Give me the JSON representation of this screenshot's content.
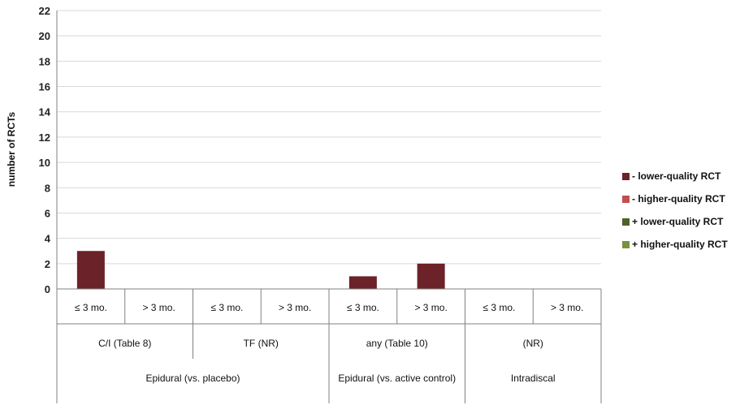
{
  "chart_data": {
    "type": "bar",
    "ylabel": "number of RCTs",
    "ylim": [
      0,
      22
    ],
    "yticks": [
      "0",
      "2",
      "4",
      "6",
      "8",
      "10",
      "12",
      "14",
      "16",
      "18",
      "20",
      "22"
    ],
    "categories": [
      "≤ 3 mo.",
      "> 3 mo.",
      "≤ 3 mo.",
      "> 3 mo.",
      "≤ 3 mo.",
      "> 3 mo.",
      "≤ 3 mo.",
      "> 3 mo."
    ],
    "level2": [
      {
        "label": "C/I (Table 8)",
        "span": 2
      },
      {
        "label": "TF (NR)",
        "span": 2
      },
      {
        "label": "any (Table 10)",
        "span": 2
      },
      {
        "label": "(NR)",
        "span": 2
      }
    ],
    "level3": [
      {
        "label": "Epidural (vs. placebo)",
        "span": 4
      },
      {
        "label": "Epidural (vs. active control)",
        "span": 2
      },
      {
        "label": "Intradiscal",
        "span": 2
      }
    ],
    "series": [
      {
        "name": "- lower-quality RCT",
        "color": "#6b2228",
        "values": [
          3,
          0,
          0,
          0,
          1,
          2,
          0,
          0
        ]
      },
      {
        "name": "- higher-quality RCT",
        "color": "#c0504d",
        "values": [
          0,
          0,
          0,
          0,
          0,
          0,
          0,
          0
        ]
      },
      {
        "name": "+ lower-quality RCT",
        "color": "#4f6228",
        "values": [
          0,
          0,
          0,
          0,
          0,
          0,
          0,
          0
        ]
      },
      {
        "name": "+ higher-quality RCT",
        "color": "#77933c",
        "values": [
          0,
          0,
          0,
          0,
          0,
          0,
          0,
          0
        ]
      }
    ],
    "stacked": true,
    "grid": true,
    "legend_position": "right"
  }
}
